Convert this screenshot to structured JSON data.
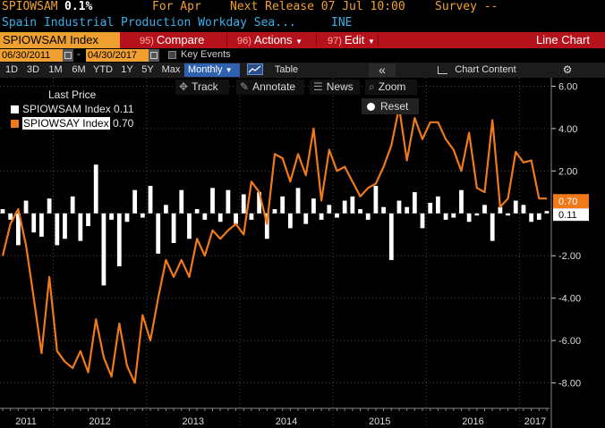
{
  "header": {
    "ticker": "SPIOWSAM",
    "value": "0.1%",
    "for_label": "For Apr",
    "next_release": "Next Release 07 Jul 10:00",
    "survey": "Survey --",
    "description": "Spain Industrial Production Workday Sea...",
    "source": "INE"
  },
  "function_bar": {
    "security": "SPIOWSAM Index",
    "compare_num": "95)",
    "compare": "Compare",
    "actions_num": "96)",
    "actions": "Actions",
    "edit_num": "97)",
    "edit": "Edit",
    "view": "Line Chart"
  },
  "dates": {
    "start": "06/30/2011",
    "end": "04/30/2017",
    "dash": "-",
    "key_events": "Key Events"
  },
  "toolbar": {
    "ranges": [
      "1D",
      "3D",
      "1M",
      "6M",
      "YTD",
      "1Y",
      "5Y",
      "Max"
    ],
    "frequency": "Monthly",
    "table": "Table",
    "collapse": "«",
    "chart_content": "Chart Content",
    "gear": "gear-icon"
  },
  "tools": {
    "track": "Track",
    "annotate": "Annotate",
    "news": "News",
    "zoom": "Zoom",
    "reset": "Reset"
  },
  "legend": {
    "title": "Last Price",
    "items": [
      {
        "label": "SPIOWSAM Index",
        "value": "0.11",
        "color": "#ffffff"
      },
      {
        "label": "SPIOWSAY Index",
        "value": "0.70",
        "color": "#f07a1a"
      }
    ]
  },
  "colors": {
    "accent": "#f0a030",
    "function_bar": "#b5121b",
    "line": "#f07a1a",
    "bars": "#ffffff"
  },
  "chart_data": {
    "type": "bar+line",
    "x": [
      "2011-06",
      "2011-07",
      "2011-08",
      "2011-09",
      "2011-10",
      "2011-11",
      "2011-12",
      "2012-01",
      "2012-02",
      "2012-03",
      "2012-04",
      "2012-05",
      "2012-06",
      "2012-07",
      "2012-08",
      "2012-09",
      "2012-10",
      "2012-11",
      "2012-12",
      "2013-01",
      "2013-02",
      "2013-03",
      "2013-04",
      "2013-05",
      "2013-06",
      "2013-07",
      "2013-08",
      "2013-09",
      "2013-10",
      "2013-11",
      "2013-12",
      "2014-01",
      "2014-02",
      "2014-03",
      "2014-04",
      "2014-05",
      "2014-06",
      "2014-07",
      "2014-08",
      "2014-09",
      "2014-10",
      "2014-11",
      "2014-12",
      "2015-01",
      "2015-02",
      "2015-03",
      "2015-04",
      "2015-05",
      "2015-06",
      "2015-07",
      "2015-08",
      "2015-09",
      "2015-10",
      "2015-11",
      "2015-12",
      "2016-01",
      "2016-02",
      "2016-03",
      "2016-04",
      "2016-05",
      "2016-06",
      "2016-07",
      "2016-08",
      "2016-09",
      "2016-10",
      "2016-11",
      "2016-12",
      "2017-01",
      "2017-02",
      "2017-03",
      "2017-04"
    ],
    "series": [
      {
        "name": "SPIOWSAM Index",
        "values": [
          0.2,
          -0.3,
          -1.5,
          0.6,
          -0.9,
          -1.1,
          0.7,
          -1.5,
          -1.2,
          0.8,
          -1.3,
          -0.6,
          2.3,
          -3.4,
          -0.3,
          -2.5,
          -0.4,
          1.1,
          -0.2,
          1.3,
          -1.9,
          0.4,
          -1.4,
          1.1,
          -1.2,
          0.2,
          -0.3,
          1.2,
          -0.4,
          1.1,
          -0.5,
          0.9,
          -0.3,
          1.0,
          -1.2,
          0.2,
          0.8,
          -0.7,
          1.2,
          -0.5,
          0.7,
          -0.3,
          0.4,
          -0.2,
          0.6,
          0.8,
          0.2,
          -0.3,
          1.3,
          0.3,
          -2.2,
          0.6,
          0.3,
          1.0,
          -0.7,
          0.5,
          0.8,
          -0.3,
          -0.2,
          1.1,
          -0.4,
          -0.1,
          0.4,
          -1.3,
          0.3,
          -0.1,
          0.6,
          0.4,
          -0.4,
          -0.3,
          0.11
        ]
      },
      {
        "name": "SPIOWSAY Index",
        "values": [
          -2.0,
          -0.5,
          0.2,
          -1.5,
          -4.0,
          -6.6,
          -3.0,
          -6.5,
          -7.0,
          -7.3,
          -6.5,
          -7.5,
          -5.0,
          -6.8,
          -7.7,
          -5.2,
          -7.2,
          -8.0,
          -4.8,
          -6.0,
          -4.0,
          -2.2,
          -3.0,
          -2.2,
          -3.0,
          -1.2,
          -2.0,
          -0.8,
          -1.2,
          -0.8,
          -0.5,
          -1.0,
          1.5,
          1.0,
          -0.5,
          2.8,
          2.6,
          1.5,
          2.8,
          1.8,
          4.0,
          0.6,
          3.0,
          2.0,
          2.2,
          1.5,
          0.8,
          1.2,
          1.4,
          2.2,
          3.2,
          5.0,
          2.5,
          4.5,
          3.5,
          4.3,
          4.3,
          3.5,
          3.0,
          2.0,
          3.8,
          1.2,
          1.0,
          4.4,
          0.3,
          0.7,
          2.9,
          2.4,
          2.5,
          0.7,
          0.7
        ]
      }
    ],
    "y_ticks": [
      "6.00",
      "4.00",
      "2.00",
      "-2.00",
      "-4.00",
      "-6.00",
      "-8.00"
    ],
    "ylim": [
      -9.2,
      6.4
    ],
    "x_ticks": [
      "2011",
      "2012",
      "2013",
      "2014",
      "2015",
      "2016",
      "2017"
    ],
    "grid": true,
    "legend": "top-left"
  }
}
